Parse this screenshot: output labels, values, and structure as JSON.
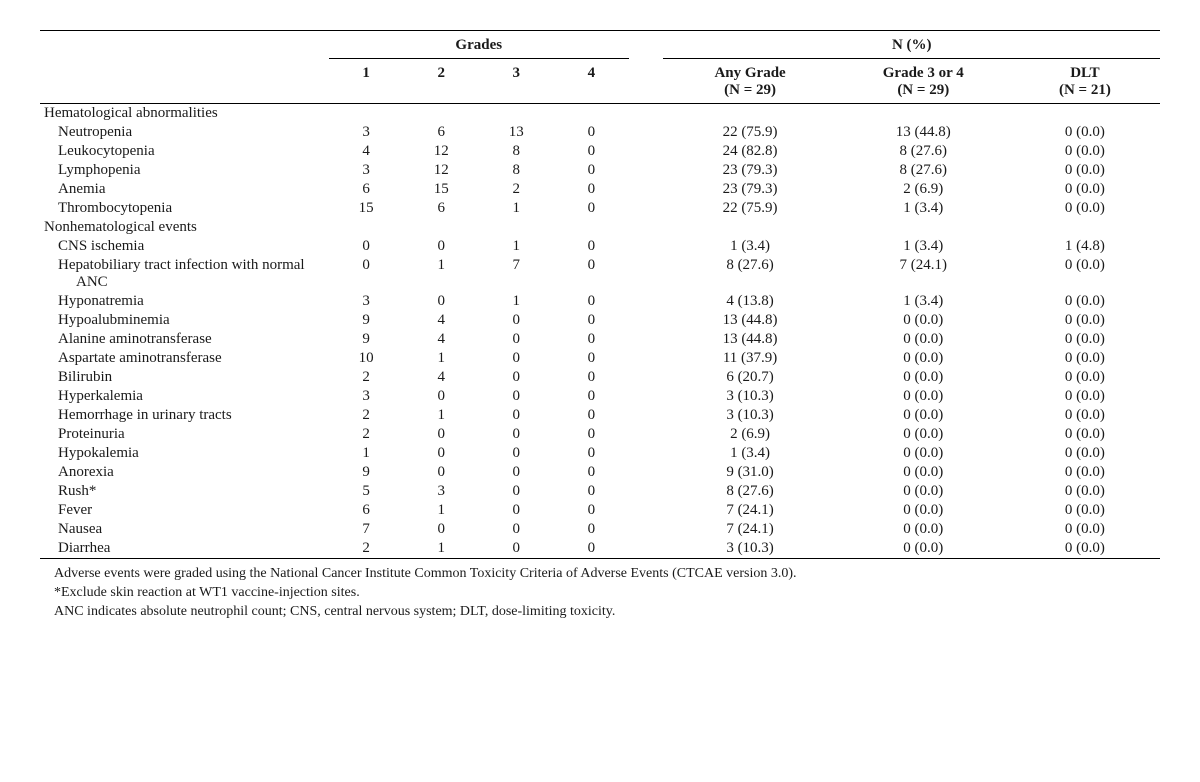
{
  "header": {
    "grades_label": "Grades",
    "npct_label": "N (%)",
    "cols": {
      "g1": "1",
      "g2": "2",
      "g3": "3",
      "g4": "4",
      "any": "Any Grade\n(N = 29)",
      "g34": "Grade 3 or 4\n(N = 29)",
      "dlt": "DLT\n(N = 21)"
    }
  },
  "sections": [
    {
      "title": "Hematological abnormalities",
      "rows": [
        {
          "label": "Neutropenia",
          "g1": "3",
          "g2": "6",
          "g3": "13",
          "g4": "0",
          "any": "22 (75.9)",
          "g34": "13 (44.8)",
          "dlt": "0 (0.0)"
        },
        {
          "label": "Leukocytopenia",
          "g1": "4",
          "g2": "12",
          "g3": "8",
          "g4": "0",
          "any": "24 (82.8)",
          "g34": "8 (27.6)",
          "dlt": "0 (0.0)"
        },
        {
          "label": "Lymphopenia",
          "g1": "3",
          "g2": "12",
          "g3": "8",
          "g4": "0",
          "any": "23 (79.3)",
          "g34": "8 (27.6)",
          "dlt": "0 (0.0)"
        },
        {
          "label": "Anemia",
          "g1": "6",
          "g2": "15",
          "g3": "2",
          "g4": "0",
          "any": "23 (79.3)",
          "g34": "2 (6.9)",
          "dlt": "0 (0.0)"
        },
        {
          "label": "Thrombocytopenia",
          "g1": "15",
          "g2": "6",
          "g3": "1",
          "g4": "0",
          "any": "22 (75.9)",
          "g34": "1 (3.4)",
          "dlt": "0 (0.0)"
        }
      ]
    },
    {
      "title": "Nonhematological events",
      "rows": [
        {
          "label": "CNS ischemia",
          "g1": "0",
          "g2": "0",
          "g3": "1",
          "g4": "0",
          "any": "1 (3.4)",
          "g34": "1 (3.4)",
          "dlt": "1 (4.8)"
        },
        {
          "label": "Hepatobiliary tract infection with normal ANC",
          "wrap": true,
          "g1": "0",
          "g2": "1",
          "g3": "7",
          "g4": "0",
          "any": "8 (27.6)",
          "g34": "7 (24.1)",
          "dlt": "0 (0.0)"
        },
        {
          "label": "Hyponatremia",
          "g1": "3",
          "g2": "0",
          "g3": "1",
          "g4": "0",
          "any": "4 (13.8)",
          "g34": "1 (3.4)",
          "dlt": "0 (0.0)"
        },
        {
          "label": "Hypoalubminemia",
          "g1": "9",
          "g2": "4",
          "g3": "0",
          "g4": "0",
          "any": "13 (44.8)",
          "g34": "0 (0.0)",
          "dlt": "0 (0.0)"
        },
        {
          "label": "Alanine aminotransferase",
          "g1": "9",
          "g2": "4",
          "g3": "0",
          "g4": "0",
          "any": "13 (44.8)",
          "g34": "0 (0.0)",
          "dlt": "0 (0.0)"
        },
        {
          "label": "Aspartate aminotransferase",
          "g1": "10",
          "g2": "1",
          "g3": "0",
          "g4": "0",
          "any": "11 (37.9)",
          "g34": "0 (0.0)",
          "dlt": "0 (0.0)"
        },
        {
          "label": "Bilirubin",
          "g1": "2",
          "g2": "4",
          "g3": "0",
          "g4": "0",
          "any": "6 (20.7)",
          "g34": "0 (0.0)",
          "dlt": "0 (0.0)"
        },
        {
          "label": "Hyperkalemia",
          "g1": "3",
          "g2": "0",
          "g3": "0",
          "g4": "0",
          "any": "3 (10.3)",
          "g34": "0 (0.0)",
          "dlt": "0 (0.0)"
        },
        {
          "label": "Hemorrhage in urinary tracts",
          "g1": "2",
          "g2": "1",
          "g3": "0",
          "g4": "0",
          "any": "3 (10.3)",
          "g34": "0 (0.0)",
          "dlt": "0 (0.0)"
        },
        {
          "label": "Proteinuria",
          "g1": "2",
          "g2": "0",
          "g3": "0",
          "g4": "0",
          "any": "2 (6.9)",
          "g34": "0 (0.0)",
          "dlt": "0 (0.0)"
        },
        {
          "label": "Hypokalemia",
          "g1": "1",
          "g2": "0",
          "g3": "0",
          "g4": "0",
          "any": "1 (3.4)",
          "g34": "0 (0.0)",
          "dlt": "0 (0.0)"
        },
        {
          "label": "Anorexia",
          "g1": "9",
          "g2": "0",
          "g3": "0",
          "g4": "0",
          "any": "9 (31.0)",
          "g34": "0 (0.0)",
          "dlt": "0 (0.0)"
        },
        {
          "label": "Rush*",
          "g1": "5",
          "g2": "3",
          "g3": "0",
          "g4": "0",
          "any": "8 (27.6)",
          "g34": "0 (0.0)",
          "dlt": "0 (0.0)"
        },
        {
          "label": "Fever",
          "g1": "6",
          "g2": "1",
          "g3": "0",
          "g4": "0",
          "any": "7 (24.1)",
          "g34": "0 (0.0)",
          "dlt": "0 (0.0)"
        },
        {
          "label": "Nausea",
          "g1": "7",
          "g2": "0",
          "g3": "0",
          "g4": "0",
          "any": "7 (24.1)",
          "g34": "0 (0.0)",
          "dlt": "0 (0.0)"
        },
        {
          "label": "Diarrhea",
          "g1": "2",
          "g2": "1",
          "g3": "0",
          "g4": "0",
          "any": "3 (10.3)",
          "g34": "0 (0.0)",
          "dlt": "0 (0.0)"
        }
      ]
    }
  ],
  "footnotes": [
    "Adverse events were graded using the National Cancer Institute Common Toxicity Criteria of Adverse Events (CTCAE version 3.0).",
    "*Exclude skin reaction at WT1 vaccine-injection sites.",
    "ANC indicates absolute neutrophil count; CNS, central nervous system; DLT, dose-limiting toxicity."
  ]
}
